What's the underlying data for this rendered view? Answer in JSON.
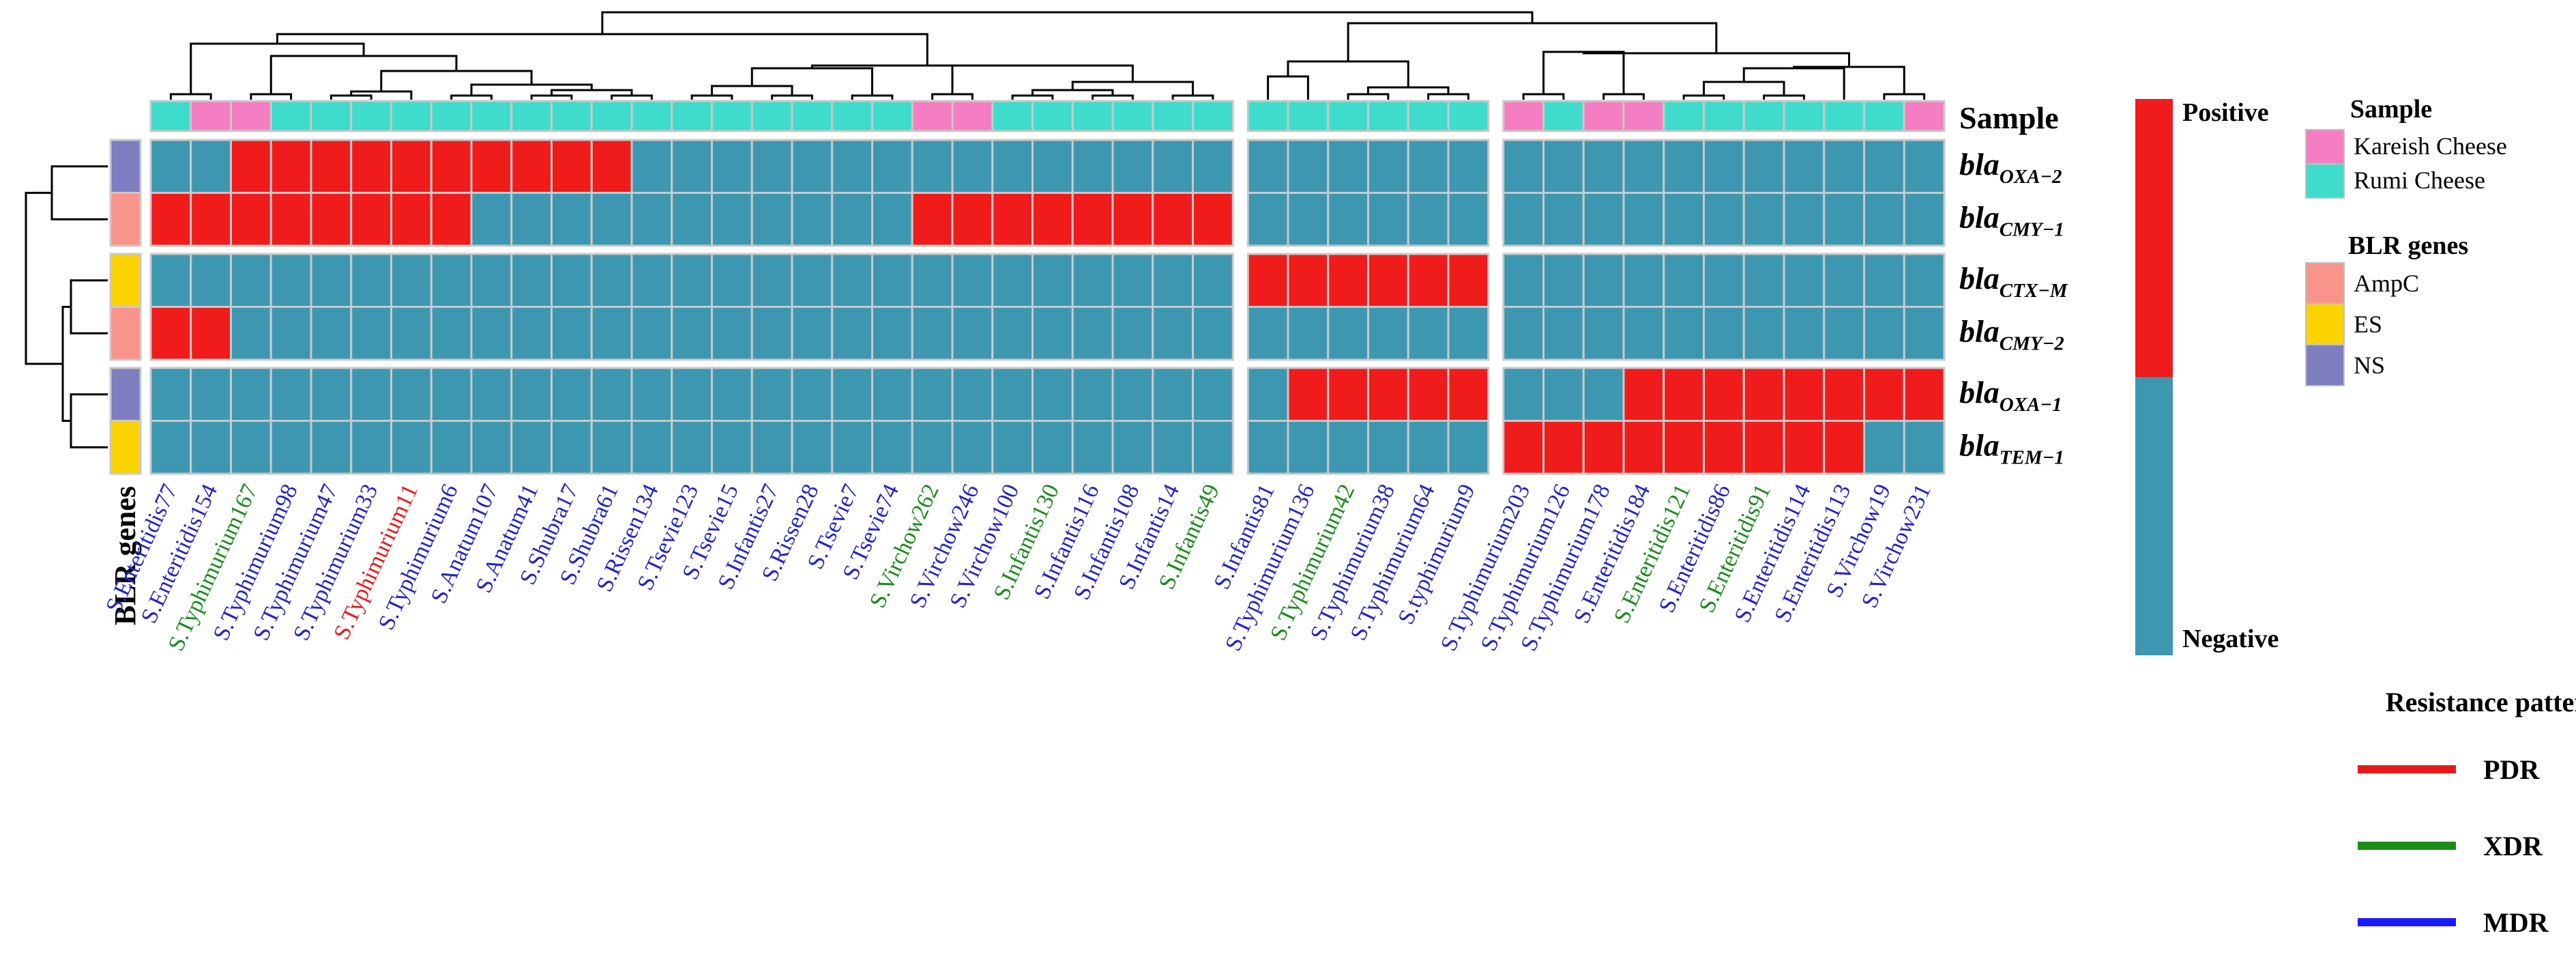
{
  "chart_data": {
    "type": "heatmap",
    "title": "",
    "columns": [
      {
        "name": "S.Enteritidis77",
        "sample": "Rumi Cheese",
        "pattern": "MDR"
      },
      {
        "name": "S.Enteritidis154",
        "sample": "Kareish Cheese",
        "pattern": "MDR"
      },
      {
        "name": "S.Typhimurium167",
        "sample": "Kareish Cheese",
        "pattern": "XDR"
      },
      {
        "name": "S.Typhimurium98",
        "sample": "Rumi Cheese",
        "pattern": "MDR"
      },
      {
        "name": "S.Typhimurium47",
        "sample": "Rumi Cheese",
        "pattern": "MDR"
      },
      {
        "name": "S.Typhimurium33",
        "sample": "Rumi Cheese",
        "pattern": "MDR"
      },
      {
        "name": "S.Typhimurium11",
        "sample": "Rumi Cheese",
        "pattern": "PDR"
      },
      {
        "name": "S.Typhimurium6",
        "sample": "Rumi Cheese",
        "pattern": "MDR"
      },
      {
        "name": "S.Anatum107",
        "sample": "Rumi Cheese",
        "pattern": "MDR"
      },
      {
        "name": "S.Anatum41",
        "sample": "Rumi Cheese",
        "pattern": "MDR"
      },
      {
        "name": "S.Shubra17",
        "sample": "Rumi Cheese",
        "pattern": "MDR"
      },
      {
        "name": "S.Shubra61",
        "sample": "Rumi Cheese",
        "pattern": "MDR"
      },
      {
        "name": "S.Rissen134",
        "sample": "Rumi Cheese",
        "pattern": "MDR"
      },
      {
        "name": "S.Tsevie123",
        "sample": "Rumi Cheese",
        "pattern": "MDR"
      },
      {
        "name": "S.Tsevie15",
        "sample": "Rumi Cheese",
        "pattern": "MDR"
      },
      {
        "name": "S.Infantis27",
        "sample": "Rumi Cheese",
        "pattern": "MDR"
      },
      {
        "name": "S.Rissen28",
        "sample": "Rumi Cheese",
        "pattern": "MDR"
      },
      {
        "name": "S.Tsevie7",
        "sample": "Rumi Cheese",
        "pattern": "MDR"
      },
      {
        "name": "S.Tsevie74",
        "sample": "Rumi Cheese",
        "pattern": "MDR"
      },
      {
        "name": "S.Virchow262",
        "sample": "Kareish Cheese",
        "pattern": "XDR"
      },
      {
        "name": "S.Virchow246",
        "sample": "Kareish Cheese",
        "pattern": "MDR"
      },
      {
        "name": "S.Virchow100",
        "sample": "Rumi Cheese",
        "pattern": "MDR"
      },
      {
        "name": "S.Infantis130",
        "sample": "Rumi Cheese",
        "pattern": "XDR"
      },
      {
        "name": "S.Infantis116",
        "sample": "Rumi Cheese",
        "pattern": "MDR"
      },
      {
        "name": "S.Infantis108",
        "sample": "Rumi Cheese",
        "pattern": "MDR"
      },
      {
        "name": "S.Infantis14",
        "sample": "Rumi Cheese",
        "pattern": "MDR"
      },
      {
        "name": "S.Infantis49",
        "sample": "Rumi Cheese",
        "pattern": "XDR"
      },
      {
        "name": "S.Infantis81",
        "sample": "Rumi Cheese",
        "pattern": "MDR"
      },
      {
        "name": "S.Typhimurium136",
        "sample": "Rumi Cheese",
        "pattern": "MDR"
      },
      {
        "name": "S.Typhimurium42",
        "sample": "Rumi Cheese",
        "pattern": "XDR"
      },
      {
        "name": "S.Typhimurium38",
        "sample": "Rumi Cheese",
        "pattern": "MDR"
      },
      {
        "name": "S.Typhimurium64",
        "sample": "Rumi Cheese",
        "pattern": "MDR"
      },
      {
        "name": "S.typhimurium9",
        "sample": "Rumi Cheese",
        "pattern": "MDR"
      },
      {
        "name": "S.Typhimurium203",
        "sample": "Kareish Cheese",
        "pattern": "MDR"
      },
      {
        "name": "S.Typhimurium126",
        "sample": "Rumi Cheese",
        "pattern": "MDR"
      },
      {
        "name": "S.Typhimurium178",
        "sample": "Kareish Cheese",
        "pattern": "MDR"
      },
      {
        "name": "S.Enteritidis184",
        "sample": "Kareish Cheese",
        "pattern": "MDR"
      },
      {
        "name": "S.Enteritidis121",
        "sample": "Rumi Cheese",
        "pattern": "XDR"
      },
      {
        "name": "S.Enteritidis86",
        "sample": "Rumi Cheese",
        "pattern": "MDR"
      },
      {
        "name": "S.Enteritidis91",
        "sample": "Rumi Cheese",
        "pattern": "XDR"
      },
      {
        "name": "S.Enteritidis114",
        "sample": "Rumi Cheese",
        "pattern": "MDR"
      },
      {
        "name": "S.Enteritidis113",
        "sample": "Rumi Cheese",
        "pattern": "MDR"
      },
      {
        "name": "S.Virchow19",
        "sample": "Rumi Cheese",
        "pattern": "MDR"
      },
      {
        "name": "S.Virchow231",
        "sample": "Kareish Cheese",
        "pattern": "MDR"
      }
    ],
    "column_groups": [
      27,
      6,
      11
    ],
    "rows": [
      {
        "prefix": "bla",
        "sub": "OXA−2",
        "group": "NS"
      },
      {
        "prefix": "bla",
        "sub": "CMY−1",
        "group": "AmpC"
      },
      {
        "prefix": "bla",
        "sub": "CTX−M",
        "group": "ES"
      },
      {
        "prefix": "bla",
        "sub": "CMY−2",
        "group": "AmpC"
      },
      {
        "prefix": "bla",
        "sub": "OXA−1",
        "group": "NS"
      },
      {
        "prefix": "bla",
        "sub": "TEM−1",
        "group": "ES"
      }
    ],
    "row_groups": [
      2,
      2,
      2
    ],
    "matrix": [
      [
        0,
        0,
        1,
        1,
        1,
        1,
        1,
        1,
        1,
        1,
        1,
        1,
        0,
        0,
        0,
        0,
        0,
        0,
        0,
        0,
        0,
        0,
        0,
        0,
        0,
        0,
        0,
        0,
        0,
        0,
        0,
        0,
        0,
        0,
        0,
        0,
        0,
        0,
        0,
        0,
        0,
        0,
        0,
        0
      ],
      [
        1,
        1,
        1,
        1,
        1,
        1,
        1,
        1,
        0,
        0,
        0,
        0,
        0,
        0,
        0,
        0,
        0,
        0,
        0,
        1,
        1,
        1,
        1,
        1,
        1,
        1,
        1,
        0,
        0,
        0,
        0,
        0,
        0,
        0,
        0,
        0,
        0,
        0,
        0,
        0,
        0,
        0,
        0,
        0
      ],
      [
        0,
        0,
        0,
        0,
        0,
        0,
        0,
        0,
        0,
        0,
        0,
        0,
        0,
        0,
        0,
        0,
        0,
        0,
        0,
        0,
        0,
        0,
        0,
        0,
        0,
        0,
        0,
        1,
        1,
        1,
        1,
        1,
        1,
        0,
        0,
        0,
        0,
        0,
        0,
        0,
        0,
        0,
        0,
        0
      ],
      [
        1,
        1,
        0,
        0,
        0,
        0,
        0,
        0,
        0,
        0,
        0,
        0,
        0,
        0,
        0,
        0,
        0,
        0,
        0,
        0,
        0,
        0,
        0,
        0,
        0,
        0,
        0,
        0,
        0,
        0,
        0,
        0,
        0,
        0,
        0,
        0,
        0,
        0,
        0,
        0,
        0,
        0,
        0,
        0
      ],
      [
        0,
        0,
        0,
        0,
        0,
        0,
        0,
        0,
        0,
        0,
        0,
        0,
        0,
        0,
        0,
        0,
        0,
        0,
        0,
        0,
        0,
        0,
        0,
        0,
        0,
        0,
        0,
        0,
        1,
        1,
        1,
        1,
        1,
        0,
        0,
        0,
        1,
        1,
        1,
        1,
        1,
        1,
        1,
        1
      ],
      [
        0,
        0,
        0,
        0,
        0,
        0,
        0,
        0,
        0,
        0,
        0,
        0,
        0,
        0,
        0,
        0,
        0,
        0,
        0,
        0,
        0,
        0,
        0,
        0,
        0,
        0,
        0,
        0,
        0,
        0,
        0,
        0,
        0,
        1,
        1,
        1,
        1,
        1,
        1,
        1,
        1,
        1,
        0,
        0
      ]
    ],
    "annotation_label_top": "Sample",
    "annotation_label_left": "BLR genes",
    "legend": {
      "value_legend": {
        "positive": "Positive",
        "negative": "Negative"
      },
      "sample_title": "Sample",
      "sample_items": [
        {
          "label": "Kareish Cheese",
          "color": "#f47ec1"
        },
        {
          "label": "Rumi Cheese",
          "color": "#3fdccb"
        }
      ],
      "genes_title": "BLR genes",
      "gene_items": [
        {
          "label": "AmpC",
          "color": "#f8948a"
        },
        {
          "label": "ES",
          "color": "#fbd300"
        },
        {
          "label": "NS",
          "color": "#7d7dbf"
        }
      ],
      "pattern_title": "Resistance pattern",
      "pattern_items": [
        {
          "label": "PDR",
          "color": "#e8191a"
        },
        {
          "label": "XDR",
          "color": "#1a8c1a"
        },
        {
          "label": "MDR",
          "color": "#1a1aff"
        }
      ]
    },
    "colors": {
      "positive": "#f01b1b",
      "negative": "#3d97b1",
      "grid": "#c9c9c9",
      "pattern_text": {
        "PDR": "#e8191a",
        "XDR": "#1a8c1a",
        "MDR": "#2323c8"
      }
    }
  }
}
